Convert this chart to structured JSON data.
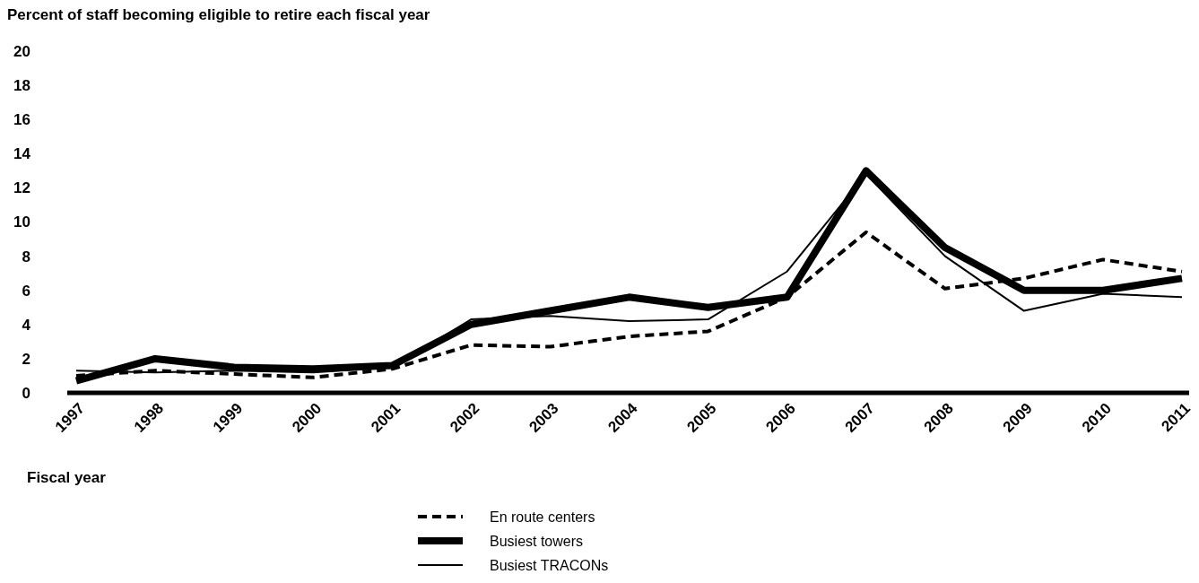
{
  "chart_data": {
    "type": "line",
    "ylabel": "Percent of staff becoming eligible to retire each fiscal year",
    "xlabel": "Fiscal year",
    "categories": [
      "1997",
      "1998",
      "1999",
      "2000",
      "2001",
      "2002",
      "2003",
      "2004",
      "2005",
      "2006",
      "2007",
      "2008",
      "2009",
      "2010",
      "2011"
    ],
    "ylim": [
      0,
      20
    ],
    "yticks": [
      0,
      2,
      4,
      6,
      8,
      10,
      12,
      14,
      16,
      18,
      20
    ],
    "grid": false,
    "legend": "bottom",
    "marker": "none",
    "series": [
      {
        "name": "En route centers",
        "color": "#000000",
        "line_style": "dashed",
        "values": [
          1.0,
          1.3,
          1.1,
          0.9,
          1.4,
          2.8,
          2.7,
          3.3,
          3.6,
          5.6,
          9.4,
          6.1,
          6.7,
          7.8,
          7.1
        ]
      },
      {
        "name": "Busiest towers",
        "color": "#000000",
        "line_style": "solid",
        "values": [
          0.7,
          2.0,
          1.5,
          1.4,
          1.6,
          4.0,
          4.8,
          5.6,
          5.0,
          5.6,
          13.0,
          8.5,
          6.0,
          6.0,
          6.7
        ]
      },
      {
        "name": "Busiest TRACONs",
        "color": "#000000",
        "line_style": "solid",
        "values": [
          1.3,
          1.2,
          1.3,
          1.2,
          1.5,
          4.3,
          4.5,
          4.2,
          4.3,
          7.1,
          12.8,
          8.0,
          4.8,
          5.8,
          5.6
        ]
      }
    ]
  }
}
